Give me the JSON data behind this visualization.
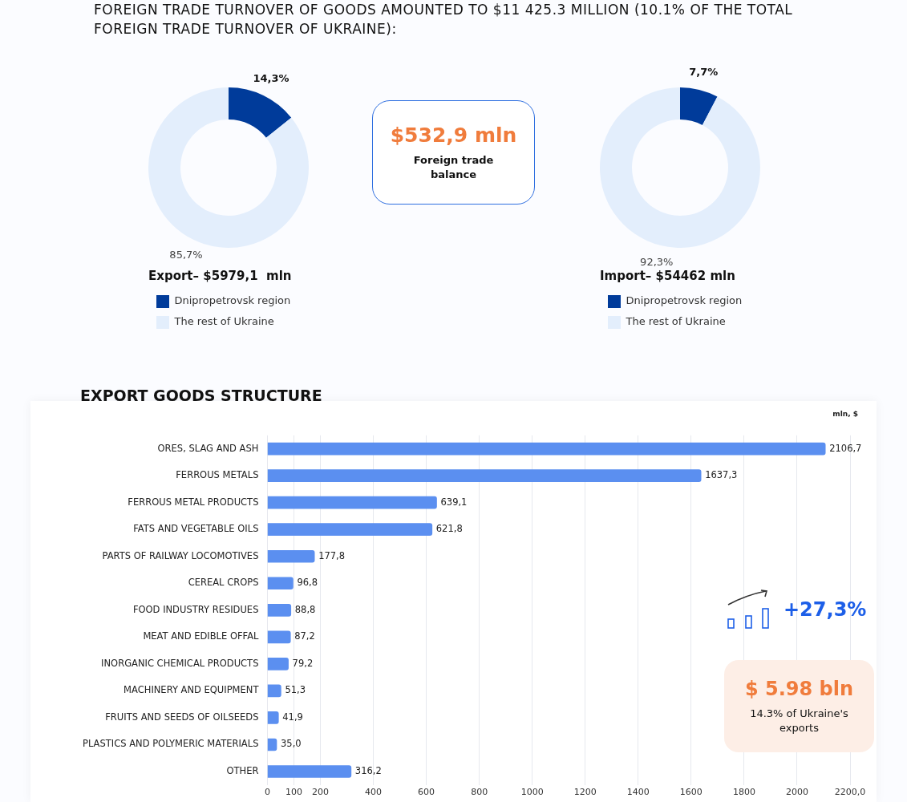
{
  "chart_data": [
    {
      "type": "other",
      "title": "FOREIGN TRADE TURNOVER OF GOODS AMOUNTED TO $11 425.3 MILLION (10.1% OF THE TOTAL FOREIGN TRADE TURNOVER OF UKRAINE):"
    },
    {
      "type": "donut",
      "title": "Export– $5979,1  mln",
      "categories": [
        "Dnipropetrovsk region",
        "The rest of Ukraine"
      ],
      "values": [
        14.3,
        85.7
      ],
      "colors": [
        "#003b9a",
        "#e3eefc"
      ],
      "value_labels": [
        "14,3%",
        "85,7%"
      ],
      "legend": "bottom"
    },
    {
      "type": "other",
      "title": "$532,9 mln",
      "subtitle": "Foreign trade balance"
    },
    {
      "type": "donut",
      "title": "Import– $54462 mln",
      "categories": [
        "Dnipropetrovsk region",
        "The rest of Ukraine"
      ],
      "values": [
        7.7,
        92.3
      ],
      "colors": [
        "#003b9a",
        "#e3eefc"
      ],
      "value_labels": [
        "7,7%",
        "92,3%"
      ],
      "legend": "bottom"
    },
    {
      "type": "bar",
      "orientation": "horizontal",
      "title": "EXPORT GOODS STRUCTURE",
      "xlabel": "mln, $",
      "categories": [
        "ORES, SLAG AND ASH",
        "FERROUS METALS",
        "FERROUS METAL PRODUCTS",
        "FATS AND VEGETABLE OILS",
        "PARTS OF RAILWAY LOCOMOTIVES",
        "CEREAL CROPS",
        "FOOD INDUSTRY RESIDUES",
        "MEAT AND EDIBLE OFFAL",
        "INORGANIC CHEMICAL PRODUCTS",
        "MACHINERY AND EQUIPMENT",
        "FRUITS AND SEEDS OF OILSEEDS",
        "PLASTICS AND POLYMERIC MATERIALS",
        "OTHER"
      ],
      "values": [
        2106.7,
        1637.3,
        639.1,
        621.8,
        177.8,
        96.8,
        88.8,
        87.2,
        79.2,
        51.3,
        41.9,
        35.0,
        316.2
      ],
      "value_labels": [
        "2106,7",
        "1637,3",
        "639,1",
        "621,8",
        "177,8",
        "96,8",
        "88,8",
        "87,2",
        "79,2",
        "51,3",
        "41,9",
        "35,0",
        "316,2"
      ],
      "color": "#5b8ff0",
      "xlim": [
        0,
        2200
      ],
      "xticks": [
        0,
        100,
        200,
        400,
        600,
        800,
        1000,
        1200,
        1400,
        1600,
        1800,
        2000,
        {
          "value": 2200,
          "label": "2200,0"
        }
      ],
      "grid": "x"
    },
    {
      "type": "other",
      "title": "+27,3%"
    },
    {
      "type": "other",
      "title": "$ 5.98 bln",
      "subtitle": "14.3% of Ukraine's exports"
    }
  ]
}
